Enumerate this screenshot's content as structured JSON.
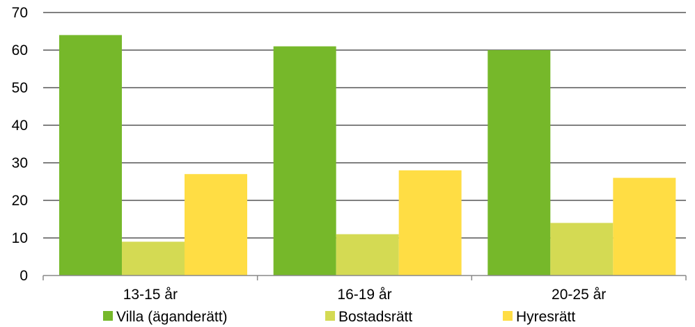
{
  "chart_data": {
    "type": "bar",
    "title": "",
    "xlabel": "",
    "ylabel": "",
    "categories": [
      "13-15 år",
      "16-19 år",
      "20-25 år"
    ],
    "series": [
      {
        "name": "Villa (äganderätt)",
        "values": [
          64,
          61,
          60
        ],
        "color": "#76b82a"
      },
      {
        "name": "Bostadsrätt",
        "values": [
          9,
          11,
          14
        ],
        "color": "#d4da53"
      },
      {
        "name": "Hyresrätt",
        "values": [
          27,
          28,
          26
        ],
        "color": "#ffdd44"
      }
    ],
    "ylim": [
      0,
      70
    ],
    "yticks": [
      0,
      10,
      20,
      30,
      40,
      50,
      60,
      70
    ],
    "grid": true,
    "legend_position": "bottom"
  }
}
